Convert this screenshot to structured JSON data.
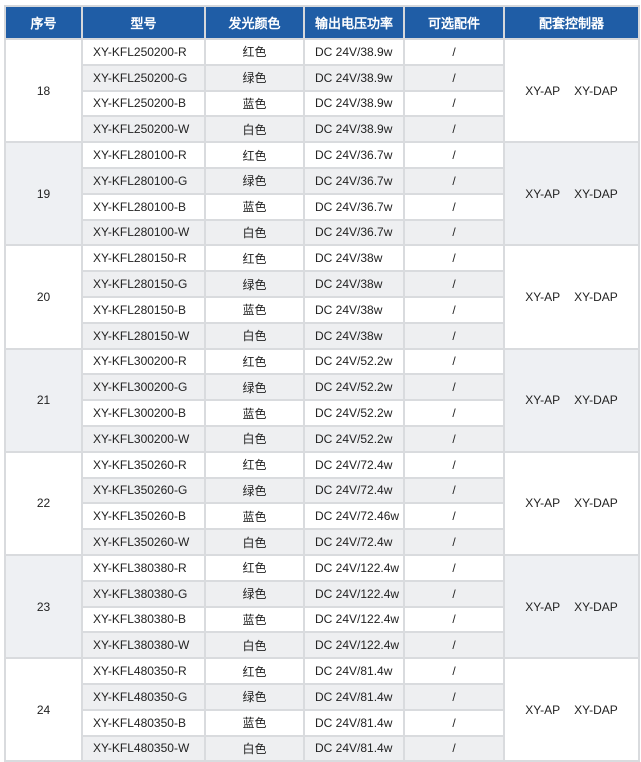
{
  "headers": [
    "序号",
    "型号",
    "发光颜色",
    "输出电压功率",
    "可选配件",
    "配套控制器"
  ],
  "colors": {
    "header_bg": "#1f5da6",
    "alt_row": "#eeeff1"
  },
  "groups": [
    {
      "seq": "18",
      "controllers": [
        "XY-AP",
        "XY-DAP"
      ],
      "rows": [
        {
          "model": "XY-KFL250200-R",
          "color": "红色",
          "power": "DC 24V/38.9w",
          "accessory": "/"
        },
        {
          "model": "XY-KFL250200-G",
          "color": "绿色",
          "power": "DC 24V/38.9w",
          "accessory": "/"
        },
        {
          "model": "XY-KFL250200-B",
          "color": "蓝色",
          "power": "DC 24V/38.9w",
          "accessory": "/"
        },
        {
          "model": "XY-KFL250200-W",
          "color": "白色",
          "power": "DC 24V/38.9w",
          "accessory": "/"
        }
      ]
    },
    {
      "seq": "19",
      "controllers": [
        "XY-AP",
        "XY-DAP"
      ],
      "rows": [
        {
          "model": "XY-KFL280100-R",
          "color": "红色",
          "power": "DC 24V/36.7w",
          "accessory": "/"
        },
        {
          "model": "XY-KFL280100-G",
          "color": "绿色",
          "power": "DC 24V/36.7w",
          "accessory": "/"
        },
        {
          "model": "XY-KFL280100-B",
          "color": "蓝色",
          "power": "DC 24V/36.7w",
          "accessory": "/"
        },
        {
          "model": "XY-KFL280100-W",
          "color": "白色",
          "power": "DC 24V/36.7w",
          "accessory": "/"
        }
      ]
    },
    {
      "seq": "20",
      "controllers": [
        "XY-AP",
        "XY-DAP"
      ],
      "rows": [
        {
          "model": "XY-KFL280150-R",
          "color": "红色",
          "power": "DC 24V/38w",
          "accessory": "/"
        },
        {
          "model": "XY-KFL280150-G",
          "color": "绿色",
          "power": "DC 24V/38w",
          "accessory": "/"
        },
        {
          "model": "XY-KFL280150-B",
          "color": "蓝色",
          "power": "DC 24V/38w",
          "accessory": "/"
        },
        {
          "model": "XY-KFL280150-W",
          "color": "白色",
          "power": "DC 24V/38w",
          "accessory": "/"
        }
      ]
    },
    {
      "seq": "21",
      "controllers": [
        "XY-AP",
        "XY-DAP"
      ],
      "rows": [
        {
          "model": "XY-KFL300200-R",
          "color": "红色",
          "power": "DC 24V/52.2w",
          "accessory": "/"
        },
        {
          "model": "XY-KFL300200-G",
          "color": "绿色",
          "power": "DC 24V/52.2w",
          "accessory": "/"
        },
        {
          "model": "XY-KFL300200-B",
          "color": "蓝色",
          "power": "DC 24V/52.2w",
          "accessory": "/"
        },
        {
          "model": "XY-KFL300200-W",
          "color": "白色",
          "power": "DC 24V/52.2w",
          "accessory": "/"
        }
      ]
    },
    {
      "seq": "22",
      "controllers": [
        "XY-AP",
        "XY-DAP"
      ],
      "rows": [
        {
          "model": "XY-KFL350260-R",
          "color": "红色",
          "power": "DC 24V/72.4w",
          "accessory": "/"
        },
        {
          "model": "XY-KFL350260-G",
          "color": "绿色",
          "power": "DC 24V/72.4w",
          "accessory": "/"
        },
        {
          "model": "XY-KFL350260-B",
          "color": "蓝色",
          "power": "DC 24V/72.46w",
          "accessory": "/"
        },
        {
          "model": "XY-KFL350260-W",
          "color": "白色",
          "power": "DC 24V/72.4w",
          "accessory": "/"
        }
      ]
    },
    {
      "seq": "23",
      "controllers": [
        "XY-AP",
        "XY-DAP"
      ],
      "rows": [
        {
          "model": "XY-KFL380380-R",
          "color": "红色",
          "power": "DC 24V/122.4w",
          "accessory": "/"
        },
        {
          "model": "XY-KFL380380-G",
          "color": "绿色",
          "power": "DC 24V/122.4w",
          "accessory": "/"
        },
        {
          "model": "XY-KFL380380-B",
          "color": "蓝色",
          "power": "DC 24V/122.4w",
          "accessory": "/"
        },
        {
          "model": "XY-KFL380380-W",
          "color": "白色",
          "power": "DC 24V/122.4w",
          "accessory": "/"
        }
      ]
    },
    {
      "seq": "24",
      "controllers": [
        "XY-AP",
        "XY-DAP"
      ],
      "rows": [
        {
          "model": "XY-KFL480350-R",
          "color": "红色",
          "power": "DC 24V/81.4w",
          "accessory": "/"
        },
        {
          "model": "XY-KFL480350-G",
          "color": "绿色",
          "power": "DC 24V/81.4w",
          "accessory": "/"
        },
        {
          "model": "XY-KFL480350-B",
          "color": "蓝色",
          "power": "DC 24V/81.4w",
          "accessory": "/"
        },
        {
          "model": "XY-KFL480350-W",
          "color": "白色",
          "power": "DC 24V/81.4w",
          "accessory": "/"
        }
      ]
    }
  ]
}
